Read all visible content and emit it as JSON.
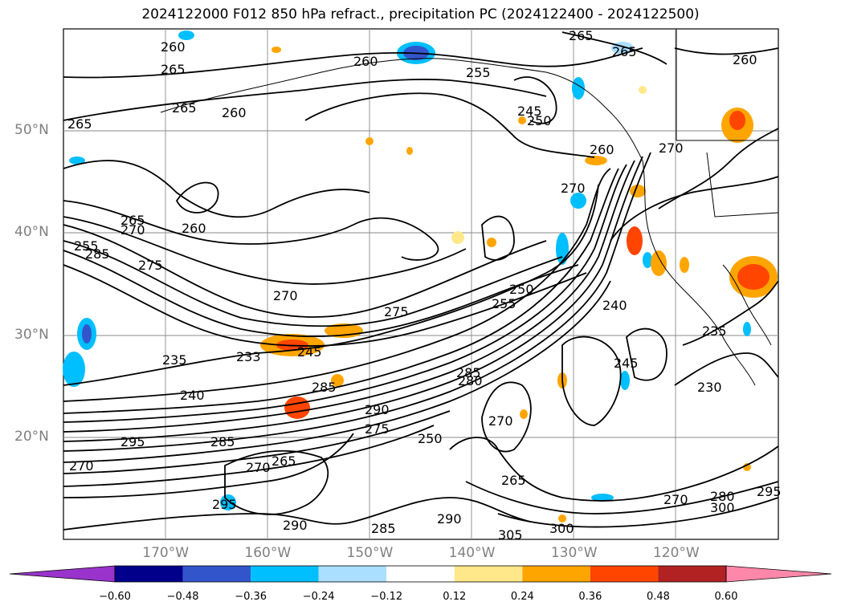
{
  "title": "2024122000 F012 850 hPa refract., precipitation PC (2024122400 - 2024122500)",
  "map": {
    "lat_labels": [
      {
        "text": "50°N",
        "lat": 50
      },
      {
        "text": "40°N",
        "lat": 40
      },
      {
        "text": "30°N",
        "lat": 30
      },
      {
        "text": "20°N",
        "lat": 20
      }
    ],
    "lon_labels": [
      {
        "text": "170°W",
        "lon": -170
      },
      {
        "text": "160°W",
        "lon": -160
      },
      {
        "text": "150°W",
        "lon": -150
      },
      {
        "text": "140°W",
        "lon": -140
      },
      {
        "text": "130°W",
        "lon": -130
      },
      {
        "text": "120°W",
        "lon": -120
      }
    ],
    "extent": {
      "lon_min": -180,
      "lon_max": -110,
      "lat_min": 10,
      "lat_max": 60
    },
    "contour_labels": [
      "260",
      "265",
      "260",
      "255",
      "265",
      "265",
      "265",
      "265",
      "260",
      "245",
      "250",
      "260",
      "270",
      "260",
      "270",
      "265",
      "260",
      "270",
      "255",
      "285",
      "275",
      "270",
      "250",
      "255",
      "240",
      "275",
      "235",
      "233",
      "245",
      "235",
      "245",
      "240",
      "285",
      "285",
      "280",
      "270",
      "290",
      "230",
      "275",
      "250",
      "285",
      "270",
      "265",
      "295",
      "295",
      "290",
      "285",
      "290",
      "300",
      "265",
      "270",
      "280",
      "300",
      "295",
      "270",
      "305"
    ]
  },
  "colorbar": {
    "ticks": [
      "−0.60",
      "−0.48",
      "−0.36",
      "−0.24",
      "−0.12",
      "0.12",
      "0.24",
      "0.36",
      "0.48",
      "0.60"
    ],
    "colors": [
      "#9933cc",
      "#00008b",
      "#3355cc",
      "#00bfff",
      "#aadfff",
      "#ffffff",
      "#ffe88a",
      "#ffa500",
      "#ff4500",
      "#b22222",
      "#ff88aa"
    ],
    "extend": "both"
  }
}
